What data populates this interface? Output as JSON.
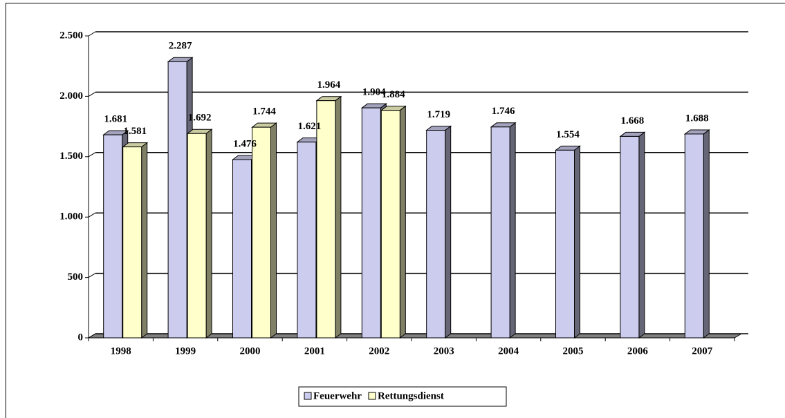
{
  "chart_data": {
    "type": "bar3d",
    "categories": [
      "1998",
      "1999",
      "2000",
      "2001",
      "2002",
      "2003",
      "2004",
      "2005",
      "2006",
      "2007"
    ],
    "series": [
      {
        "name": "Feuerwehr",
        "color": "#ccccee",
        "values": [
          1681,
          2287,
          1476,
          1621,
          1904,
          1719,
          1746,
          1554,
          1668,
          1688
        ],
        "value_labels": [
          "1.681",
          "2.287",
          "1.476",
          "1.621",
          "1.904",
          "1.719",
          "1.746",
          "1.554",
          "1.668",
          "1.688"
        ]
      },
      {
        "name": "Rettungsdienst",
        "color": "#ffffcc",
        "values": [
          1581,
          1692,
          1744,
          1964,
          1884,
          null,
          null,
          null,
          null,
          null
        ],
        "value_labels": [
          "1.581",
          "1.692",
          "1.744",
          "1.964",
          "1.884",
          null,
          null,
          null,
          null,
          null
        ]
      }
    ],
    "ylim": [
      0,
      2500
    ],
    "yticks": [
      0,
      {
        "value": 500,
        "label": "500"
      },
      {
        "value": 1000,
        "label": "1.000"
      },
      {
        "value": 1500,
        "label": "1.500"
      },
      {
        "value": 2000,
        "label": "2.000"
      },
      {
        "value": 2500,
        "label": "2.500"
      }
    ],
    "grid": true,
    "legend": "bottom"
  }
}
